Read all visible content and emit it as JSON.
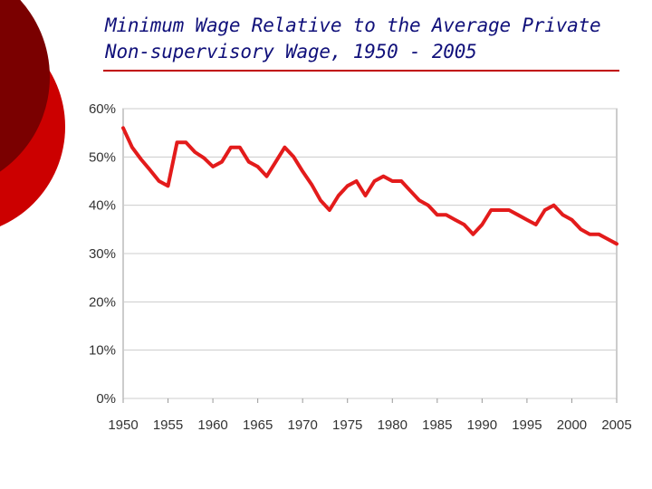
{
  "slide": {
    "title_line1": "Minimum Wage Relative to the Average Private",
    "title_line2": "Non-supervisory Wage, 1950 - 2005"
  },
  "colors": {
    "line": "#e31b1b",
    "accent_dark": "#7a0000",
    "accent_red": "#cc0000",
    "title_text": "#10107a",
    "rule": "#c00000",
    "grid": "#cccccc",
    "axis": "#999999"
  },
  "chart_data": {
    "type": "line",
    "title": "",
    "xlabel": "",
    "ylabel": "",
    "xlim": [
      1950,
      2005
    ],
    "ylim": [
      0,
      60
    ],
    "y_unit": "%",
    "grid": true,
    "x_ticks": [
      "1950",
      "1955",
      "1960",
      "1965",
      "1970",
      "1975",
      "1980",
      "1985",
      "1990",
      "1995",
      "2000",
      "2005"
    ],
    "y_ticks": [
      "0%",
      "10%",
      "20%",
      "30%",
      "40%",
      "50%",
      "60%"
    ],
    "series": [
      {
        "name": "Minimum wage / average private non-supervisory wage",
        "x": [
          1950,
          1951,
          1952,
          1953,
          1954,
          1955,
          1956,
          1957,
          1958,
          1959,
          1960,
          1961,
          1962,
          1963,
          1964,
          1965,
          1966,
          1967,
          1968,
          1969,
          1970,
          1971,
          1972,
          1973,
          1974,
          1975,
          1976,
          1977,
          1978,
          1979,
          1980,
          1981,
          1982,
          1983,
          1984,
          1985,
          1986,
          1987,
          1988,
          1989,
          1990,
          1991,
          1992,
          1993,
          1994,
          1995,
          1996,
          1997,
          1998,
          1999,
          2000,
          2001,
          2002,
          2003,
          2004,
          2005
        ],
        "values": [
          56,
          52,
          49.5,
          47.3,
          45,
          44,
          53,
          53,
          51,
          49.8,
          48,
          49,
          52,
          52,
          49,
          48,
          46,
          49,
          52,
          50,
          47,
          44.3,
          41,
          39,
          42,
          44,
          45,
          42,
          45,
          46,
          45,
          45,
          43,
          41,
          40,
          38,
          38,
          37,
          36,
          34,
          36,
          39,
          39,
          39,
          38,
          37,
          36,
          39,
          40,
          38,
          37,
          35,
          34,
          34,
          33,
          32
        ]
      }
    ]
  }
}
